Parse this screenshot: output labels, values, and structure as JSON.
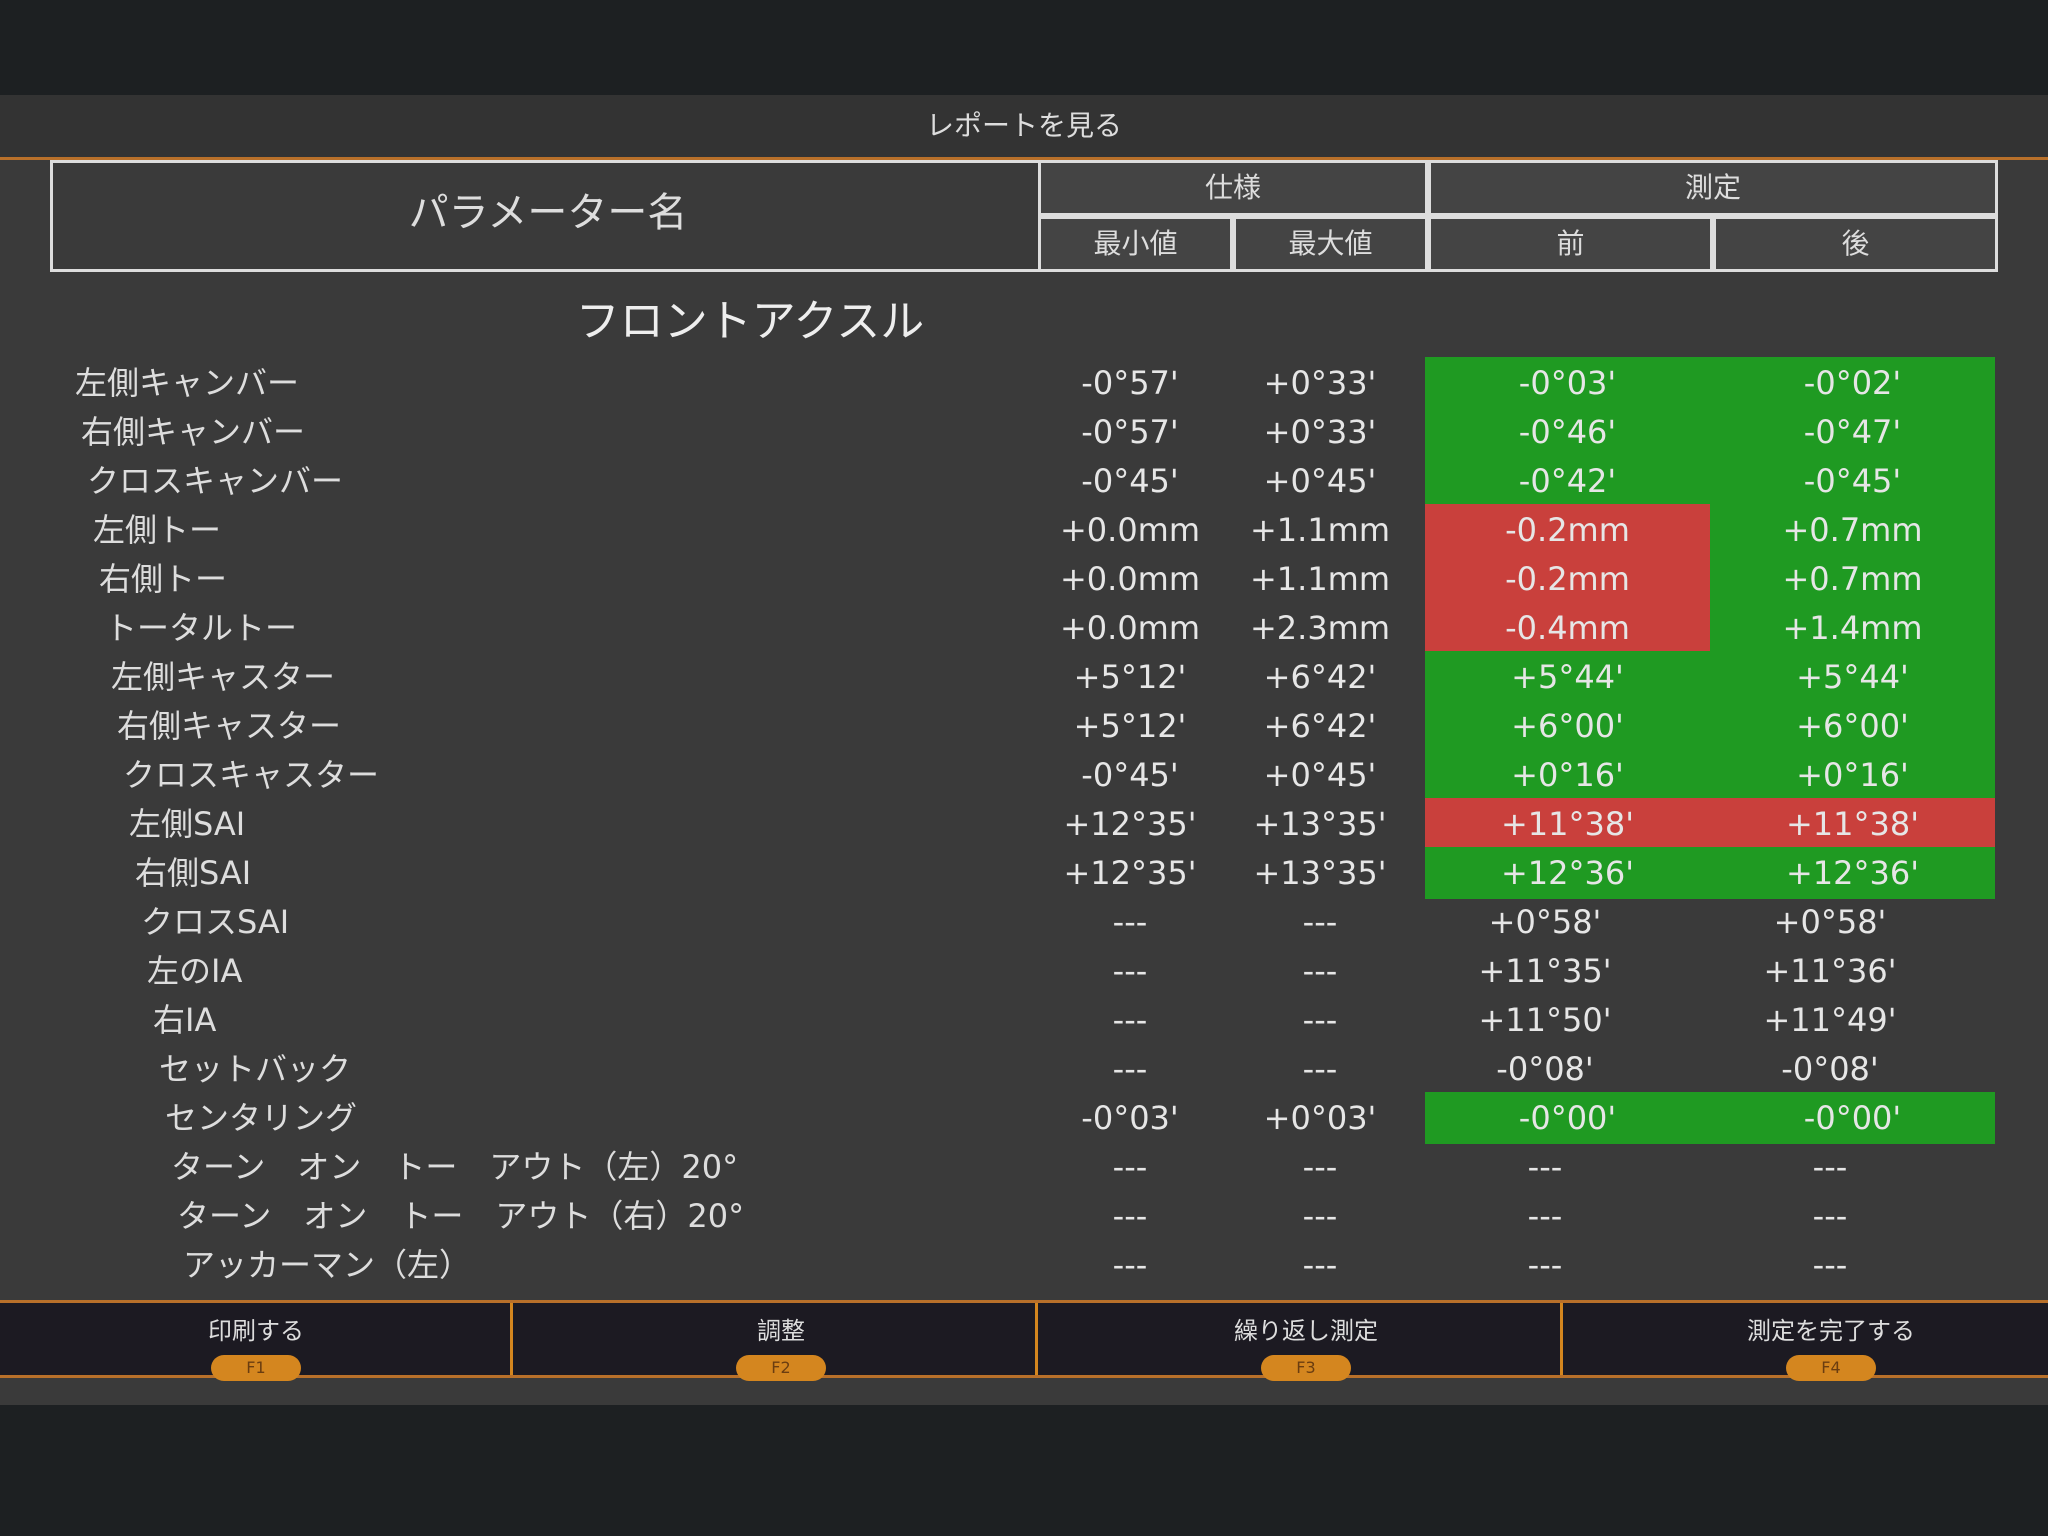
{
  "window": {
    "title": "レポートを見る"
  },
  "header": {
    "param": "パラメーター名",
    "spec": "仕様",
    "measure": "測定",
    "min": "最小値",
    "max": "最大値",
    "before": "前",
    "after": "後"
  },
  "section": "フロントアクスル",
  "colors": {
    "green": "#1f9a22",
    "red": "#c9403c",
    "accent": "#d4861f"
  },
  "rows": [
    {
      "name": "左側キャンバー",
      "min": "-0°57'",
      "max": "+0°33'",
      "before": "-0°03'",
      "after": "-0°02'",
      "bs": "green",
      "as": "green"
    },
    {
      "name": "右側キャンバー",
      "min": "-0°57'",
      "max": "+0°33'",
      "before": "-0°46'",
      "after": "-0°47'",
      "bs": "green",
      "as": "green"
    },
    {
      "name": "クロスキャンバー",
      "min": "-0°45'",
      "max": "+0°45'",
      "before": "-0°42'",
      "after": "-0°45'",
      "bs": "green",
      "as": "green"
    },
    {
      "name": "左側トー",
      "min": "+0.0mm",
      "max": "+1.1mm",
      "before": "-0.2mm",
      "after": "+0.7mm",
      "bs": "red",
      "as": "green"
    },
    {
      "name": "右側トー",
      "min": "+0.0mm",
      "max": "+1.1mm",
      "before": "-0.2mm",
      "after": "+0.7mm",
      "bs": "red",
      "as": "green"
    },
    {
      "name": "トータルトー",
      "min": "+0.0mm",
      "max": "+2.3mm",
      "before": "-0.4mm",
      "after": "+1.4mm",
      "bs": "red",
      "as": "green"
    },
    {
      "name": "左側キャスター",
      "min": "+5°12'",
      "max": "+6°42'",
      "before": "+5°44'",
      "after": "+5°44'",
      "bs": "green",
      "as": "green"
    },
    {
      "name": "右側キャスター",
      "min": "+5°12'",
      "max": "+6°42'",
      "before": "+6°00'",
      "after": "+6°00'",
      "bs": "green",
      "as": "green"
    },
    {
      "name": "クロスキャスター",
      "min": "-0°45'",
      "max": "+0°45'",
      "before": "+0°16'",
      "after": "+0°16'",
      "bs": "green",
      "as": "green"
    },
    {
      "name": "左側SAI",
      "min": "+12°35'",
      "max": "+13°35'",
      "before": "+11°38'",
      "after": "+11°38'",
      "bs": "red",
      "as": "red"
    },
    {
      "name": "右側SAI",
      "min": "+12°35'",
      "max": "+13°35'",
      "before": "+12°36'",
      "after": "+12°36'",
      "bs": "green",
      "as": "green"
    },
    {
      "name": "クロスSAI",
      "min": "---",
      "max": "---",
      "before": "+0°58'",
      "after": "+0°58'",
      "bs": "",
      "as": ""
    },
    {
      "name": "左のIA",
      "min": "---",
      "max": "---",
      "before": "+11°35'",
      "after": "+11°36'",
      "bs": "",
      "as": ""
    },
    {
      "name": "右IA",
      "min": "---",
      "max": "---",
      "before": "+11°50'",
      "after": "+11°49'",
      "bs": "",
      "as": ""
    },
    {
      "name": "セットバック",
      "min": "---",
      "max": "---",
      "before": "-0°08'",
      "after": "-0°08'",
      "bs": "",
      "as": ""
    },
    {
      "name": "センタリング",
      "min": "-0°03'",
      "max": "+0°03'",
      "before": "-0°00'",
      "after": "-0°00'",
      "bs": "green",
      "as": "green"
    },
    {
      "name": "ターン　オン　トー　アウト（左）20°",
      "min": "---",
      "max": "---",
      "before": "---",
      "after": "---",
      "bs": "",
      "as": ""
    },
    {
      "name": "ターン　オン　トー　アウト（右）20°",
      "min": "---",
      "max": "---",
      "before": "---",
      "after": "---",
      "bs": "",
      "as": ""
    },
    {
      "name": "アッカーマン（左）",
      "min": "---",
      "max": "---",
      "before": "---",
      "after": "---",
      "bs": "",
      "as": ""
    }
  ],
  "buttons": [
    {
      "label": "印刷する",
      "key": "F1"
    },
    {
      "label": "調整",
      "key": "F2"
    },
    {
      "label": "繰り返し測定",
      "key": "F3"
    },
    {
      "label": "測定を完了する",
      "key": "F4"
    }
  ]
}
